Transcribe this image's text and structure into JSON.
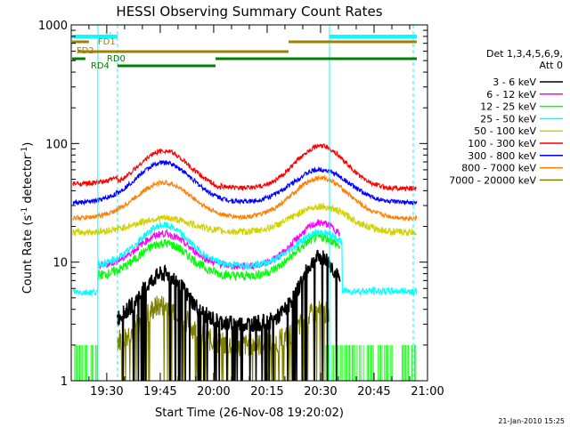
{
  "chart_data": {
    "type": "line",
    "title": "HESSI Observing Summary Count Rates",
    "xlabel": "Start Time (26-Nov-08 19:20:02)",
    "ylabel_main": "Count Rate (s",
    "ylabel_sup1": "-1",
    "ylabel_mid": " detector",
    "ylabel_sup2": "-1",
    "ylabel_end": ")",
    "y_scale": "log",
    "ylim": [
      1,
      1000
    ],
    "xlim": [
      "19:20:02",
      "21:00"
    ],
    "x_ticks": [
      "19:30",
      "19:45",
      "20:00",
      "20:15",
      "20:30",
      "20:45",
      "21:00"
    ],
    "y_ticks": [
      "1",
      "10",
      "100",
      "1000"
    ],
    "legend_header": [
      "Det 1,3,4,5,6,9,",
      "Att 0"
    ],
    "legend_position": "right",
    "series": [
      {
        "name": "3 - 6 keV",
        "color": "#000000"
      },
      {
        "name": "6 - 12 keV",
        "color": "#ff00ff"
      },
      {
        "name": "12 - 25 keV",
        "color": "#00ff00"
      },
      {
        "name": "25 - 50 keV",
        "color": "#00ffff"
      },
      {
        "name": "50 - 100 keV",
        "color": "#d2d200"
      },
      {
        "name": "100 - 300 keV",
        "color": "#ff0000"
      },
      {
        "name": "300 - 800 keV",
        "color": "#0000ff"
      },
      {
        "name": "800 - 7000 keV",
        "color": "#ff7f00"
      },
      {
        "name": "7000 - 20000 keV",
        "color": "#7f7f00"
      }
    ],
    "flags": [
      {
        "name": "N",
        "color": "#00ffff"
      },
      {
        "name": "FD1",
        "color": "#a08000"
      },
      {
        "name": "FD2",
        "color": "#a08000"
      },
      {
        "name": "RD0",
        "color": "#008000"
      },
      {
        "name": "RD4",
        "color": "#008000"
      }
    ],
    "timestamp": "21-Jan-2010 15:25"
  }
}
